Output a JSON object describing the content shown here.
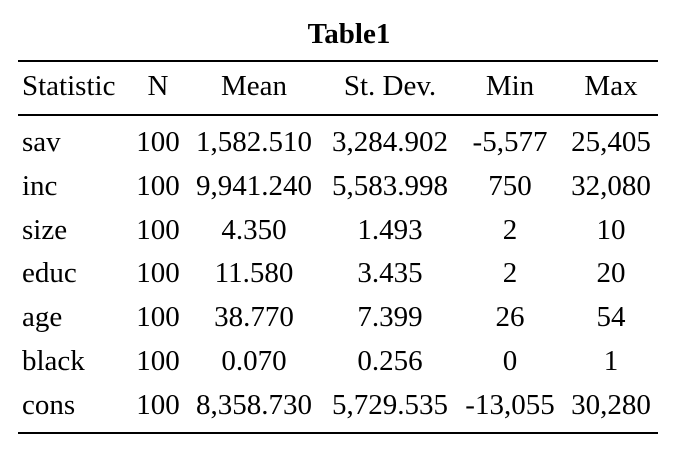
{
  "table": {
    "title": "Table1",
    "headers": [
      "Statistic",
      "N",
      "Mean",
      "St. Dev.",
      "Min",
      "Max"
    ],
    "rows": [
      [
        "sav",
        "100",
        "1,582.510",
        "3,284.902",
        "-5,577",
        "25,405"
      ],
      [
        "inc",
        "100",
        "9,941.240",
        "5,583.998",
        "750",
        "32,080"
      ],
      [
        "size",
        "100",
        "4.350",
        "1.493",
        "2",
        "10"
      ],
      [
        "educ",
        "100",
        "11.580",
        "3.435",
        "2",
        "20"
      ],
      [
        "age",
        "100",
        "38.770",
        "7.399",
        "26",
        "54"
      ],
      [
        "black",
        "100",
        "0.070",
        "0.256",
        "0",
        "1"
      ],
      [
        "cons",
        "100",
        "8,358.730",
        "5,729.535",
        "-13,055",
        "30,280"
      ]
    ]
  }
}
